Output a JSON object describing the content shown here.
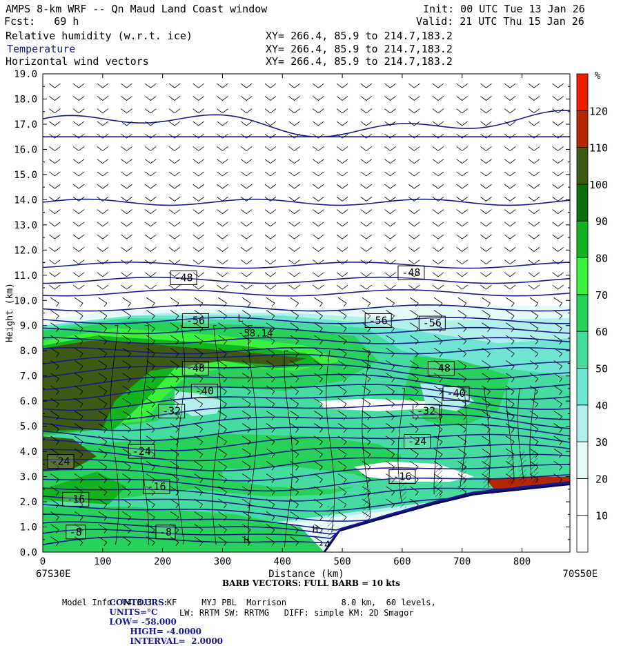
{
  "header": {
    "title": "AMPS 8-km WRF -- Qn Maud Land Coast window",
    "fcst": "Fcst:   69 h",
    "init": "Init: 00 UTC Tue 13 Jan 26",
    "valid": "Valid: 21 UTC Thu 15 Jan 26",
    "fields": [
      {
        "name": "Relative humidity (w.r.t. ice)",
        "xy": "XY= 266.4, 85.9 to 214.7,183.2",
        "color": "#000000"
      },
      {
        "name": "Temperature",
        "xy": "XY= 266.4, 85.9 to 214.7,183.2",
        "color": "#1a1a8c"
      },
      {
        "name": "Horizontal wind vectors",
        "xy": "XY= 266.4, 85.9 to 214.7,183.2",
        "color": "#000000"
      }
    ]
  },
  "chart_data": {
    "type": "heatmap",
    "xlabel": "Distance (km)",
    "ylabel": "Height (km)",
    "xlim": [
      0,
      880
    ],
    "ylim": [
      0,
      19
    ],
    "xticks": [
      "0",
      "100",
      "200",
      "300",
      "400",
      "500",
      "600",
      "700",
      "800"
    ],
    "yticks": [
      "0.0",
      "1.0",
      "2.0",
      "3.0",
      "4.0",
      "5.0",
      "6.0",
      "7.0",
      "8.0",
      "9.0",
      "10.0",
      "11.0",
      "12.0",
      "13.0",
      "14.0",
      "15.0",
      "16.0",
      "17.0",
      "18.0",
      "19.0"
    ],
    "x_left_label": "67S30E",
    "x_right_label": "70S50E",
    "colorbar": {
      "unit": "%",
      "levels": [
        10,
        20,
        30,
        40,
        50,
        60,
        70,
        80,
        90,
        100,
        110,
        120
      ],
      "colors": [
        "#ffffff",
        "#ffffff",
        "#e6fafa",
        "#b4f0eb",
        "#6ee6d2",
        "#46dca0",
        "#28d25a",
        "#3cf03c",
        "#14b41e",
        "#0a6e0a",
        "#3c5a14",
        "#b42800",
        "#f01e00"
      ]
    },
    "temperature_labels": [
      {
        "text": "-48",
        "x": 235,
        "y": 10.9
      },
      {
        "text": "-48",
        "x": 615,
        "y": 11.1
      },
      {
        "text": "-56",
        "x": 255,
        "y": 9.2
      },
      {
        "text": "-56",
        "x": 560,
        "y": 9.2
      },
      {
        "text": "-56",
        "x": 650,
        "y": 9.1
      },
      {
        "text": "-48",
        "x": 255,
        "y": 7.3
      },
      {
        "text": "-48",
        "x": 665,
        "y": 7.3
      },
      {
        "text": "-40",
        "x": 270,
        "y": 6.4
      },
      {
        "text": "-40",
        "x": 690,
        "y": 6.3
      },
      {
        "text": "-32",
        "x": 215,
        "y": 5.6
      },
      {
        "text": "-32",
        "x": 640,
        "y": 5.6
      },
      {
        "text": "-24",
        "x": 165,
        "y": 4.0
      },
      {
        "text": "-24",
        "x": 30,
        "y": 3.6
      },
      {
        "text": "-24",
        "x": 625,
        "y": 4.4
      },
      {
        "text": "-16",
        "x": 190,
        "y": 2.6
      },
      {
        "text": "-16",
        "x": 55,
        "y": 2.1
      },
      {
        "text": "-16",
        "x": 600,
        "y": 3.0
      },
      {
        "text": "-8",
        "x": 55,
        "y": 0.8
      },
      {
        "text": "-8",
        "x": 205,
        "y": 0.8
      }
    ],
    "extrema_labels": [
      {
        "text": "L",
        "x": 330,
        "y": 9.3
      },
      {
        "text": "-58.14",
        "x": 355,
        "y": 8.7
      },
      {
        "text": "H",
        "x": 340,
        "y": 0.5
      },
      {
        "text": "H",
        "x": 455,
        "y": 0.9
      },
      {
        "text": "-4",
        "x": 470,
        "y": 0.3
      }
    ],
    "isotherms_km": [
      0.3,
      0.6,
      0.9,
      1.2,
      1.6,
      2.0,
      2.4,
      2.8,
      3.2,
      3.6,
      4.0,
      4.4,
      4.8,
      5.2,
      5.6,
      6.0,
      6.4,
      6.8,
      7.2,
      7.6,
      8.0,
      8.4,
      8.8,
      9.2,
      9.7,
      10.3,
      10.8,
      11.4
    ]
  },
  "footer": {
    "barb": "BARB VECTORS: FULL BARB = 10 kts",
    "contours_label": "CONTOURS:",
    "units": "UNITS=°C",
    "low": "LOW= -58.000",
    "high": "HIGH= -4.0000",
    "interval": "INTERVAL=  2.0000",
    "model_info": "Model Info: V4.3.3   KF     MYJ PBL  Morrison           8.0 km,  60 levels,",
    "model_info2": "LW: RRTM SW: RRTMG   DIFF: simple KM: 2D Smagor"
  }
}
